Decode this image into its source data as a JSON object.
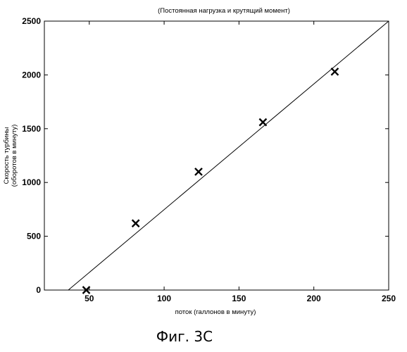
{
  "chart_data": {
    "type": "scatter",
    "title": "(Постоянная нагрузка и крутящий момент)",
    "xlabel": "поток (галлонов в минуту)",
    "ylabel_line1": "Скорость турбины",
    "ylabel_line2": "(оборотов в минуту)",
    "xlim": [
      20,
      250
    ],
    "ylim": [
      0,
      2500
    ],
    "x_ticks": [
      50,
      100,
      150,
      200,
      250
    ],
    "y_ticks": [
      0,
      500,
      1000,
      1500,
      2000,
      2500
    ],
    "grid": false,
    "series": [
      {
        "kind": "points",
        "marker": "x",
        "x": [
          48,
          81,
          123,
          166,
          214
        ],
        "y": [
          0,
          620,
          1100,
          1560,
          2030
        ]
      },
      {
        "kind": "fit-line",
        "x": [
          36,
          250
        ],
        "y": [
          0,
          2500
        ]
      }
    ]
  },
  "caption": "Фиг. 3С"
}
